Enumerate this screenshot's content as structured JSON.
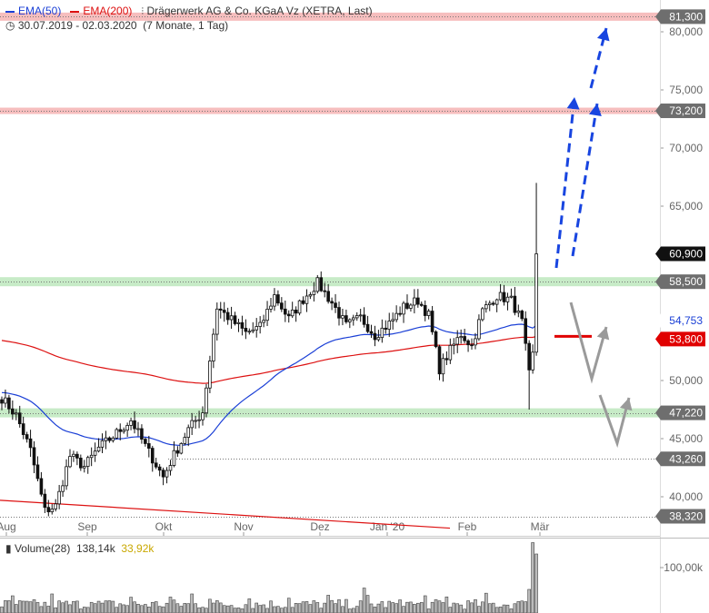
{
  "header": {
    "ema50_label": "EMA(50)",
    "ema200_label": "EMA(200)",
    "title": "Drägerwerk AG & Co. KGaA Vz (XETRA, Last)",
    "date_range": "30.07.2019 - 02.03.2020",
    "period": "(7 Monate, 1 Tag)"
  },
  "volume_header": {
    "label": "Volume(28)",
    "value": "138,14k",
    "avg": "33,92k"
  },
  "colors": {
    "ema50": "#1a3fd6",
    "ema200": "#dd1111",
    "candle": "#111111",
    "resistance_zone": "#f4b3b3",
    "support_zone": "#bde8bd",
    "blue_arrow": "#1845e0",
    "gray_arrow": "#9a9a9a",
    "target_line": "#e00000"
  },
  "chart_data": {
    "type": "candlestick",
    "title": "Drägerwerk AG & Co. KGaA Vz (XETRA, Last)",
    "period": "30.07.2019 - 02.03.2020",
    "ylim": [
      37500,
      82000
    ],
    "x_labels": [
      "Aug",
      "Sep",
      "Okt",
      "Nov",
      "Dez",
      "Jan '20",
      "Feb",
      "Mär"
    ],
    "y_ticks": [
      "40,000",
      "45,000",
      "50,000",
      "65,000",
      "70,000",
      "75,000",
      "80,000"
    ],
    "y_tick_values": [
      40000,
      45000,
      50000,
      65000,
      70000,
      75000,
      80000
    ],
    "price_labels": [
      {
        "text": "81,300",
        "value": 81300,
        "style": "gray"
      },
      {
        "text": "73,200",
        "value": 73200,
        "style": "gray"
      },
      {
        "text": "60,900",
        "value": 60900,
        "style": "black"
      },
      {
        "text": "58,500",
        "value": 58500,
        "style": "gray"
      },
      {
        "text": "54,753",
        "value": 54753,
        "style": "blue"
      },
      {
        "text": "53,800",
        "value": 53800,
        "style": "red"
      },
      {
        "text": "47,220",
        "value": 47220,
        "style": "gray"
      },
      {
        "text": "43,260",
        "value": 43260,
        "style": "gray"
      },
      {
        "text": "38,320",
        "value": 38320,
        "style": "gray"
      }
    ],
    "zones": [
      {
        "type": "resistance",
        "value": 81300
      },
      {
        "type": "resistance",
        "value": 73200
      },
      {
        "type": "support",
        "value": 58500
      },
      {
        "type": "support",
        "value": 47220
      }
    ],
    "dotted_levels": [
      81300,
      73200,
      58500,
      47220,
      43260,
      38320
    ],
    "target_marker": 53800,
    "key_prices": {
      "start_close": 48500,
      "aug_low": 38320,
      "oct_low": 41000,
      "nov_high": 58800,
      "jan_low": 49800,
      "feb_high": 58600,
      "last_close": 60900,
      "last_high": 67000,
      "ema50_last": 54753,
      "ema200_last": 53800
    },
    "series": [
      {
        "name": "EMA(50)",
        "start": 49000,
        "end": 54753
      },
      {
        "name": "EMA(200)",
        "start": 53500,
        "end": 53800
      }
    ],
    "volume": {
      "ylabel": "100,00k",
      "tick_value": 100000,
      "last": 138140,
      "average_28": 33920
    }
  }
}
